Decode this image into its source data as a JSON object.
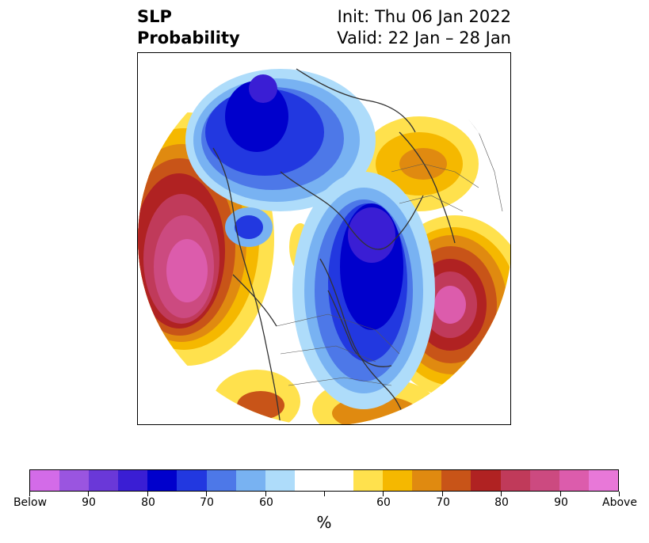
{
  "title": {
    "left_line1": "SLP",
    "left_line2": "Probability",
    "right_line1": "Init: Thu 06 Jan 2022",
    "right_line2": "Valid: 22 Jan – 28 Jan"
  },
  "colorbar": {
    "unit": "%",
    "tick_labels": [
      "Below",
      "90",
      "80",
      "70",
      "60",
      "",
      "60",
      "70",
      "80",
      "90",
      "Above"
    ],
    "colors": [
      "#d36be8",
      "#9a55e0",
      "#6a38d8",
      "#3a1ed4",
      "#0000cc",
      "#2238e0",
      "#4d78e8",
      "#78b2f2",
      "#aedcfa",
      "#ffffff",
      "#ffffff",
      "#ffe14d",
      "#f5b800",
      "#e08a10",
      "#c85418",
      "#b02222",
      "#c03a5a",
      "#cc4a80",
      "#dc5cac",
      "#e878d8"
    ]
  },
  "map": {
    "type": "polar-stereographic probability map",
    "below_color_low": "#0000cc",
    "above_color_high": "#dc5cac"
  }
}
